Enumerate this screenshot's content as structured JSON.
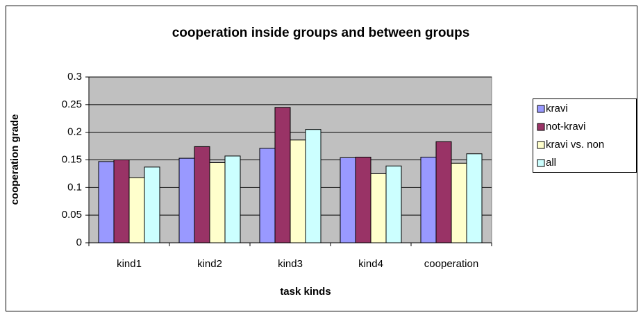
{
  "chart_data": {
    "type": "bar",
    "title": "cooperation inside groups and between groups",
    "x_label": "task kinds",
    "y_label": "cooperation grade",
    "categories": [
      "kind1",
      "kind2",
      "kind3",
      "kind4",
      "cooperation"
    ],
    "series": [
      {
        "name": "kravi",
        "color": "#9999ff",
        "values": [
          0.147,
          0.153,
          0.171,
          0.154,
          0.155
        ]
      },
      {
        "name": "not-kravi",
        "color": "#993366",
        "values": [
          0.15,
          0.174,
          0.245,
          0.155,
          0.183
        ]
      },
      {
        "name": "kravi vs. non",
        "color": "#ffffcc",
        "values": [
          0.118,
          0.145,
          0.186,
          0.125,
          0.144
        ]
      },
      {
        "name": "all",
        "color": "#ccffff",
        "values": [
          0.137,
          0.157,
          0.205,
          0.139,
          0.161
        ]
      }
    ],
    "ylim": [
      0,
      0.3
    ],
    "yticks": [
      0,
      0.05,
      0.1,
      0.15,
      0.2,
      0.25,
      0.3
    ],
    "grid": true,
    "plot_background": "#c0c0c0",
    "legend": "right"
  }
}
